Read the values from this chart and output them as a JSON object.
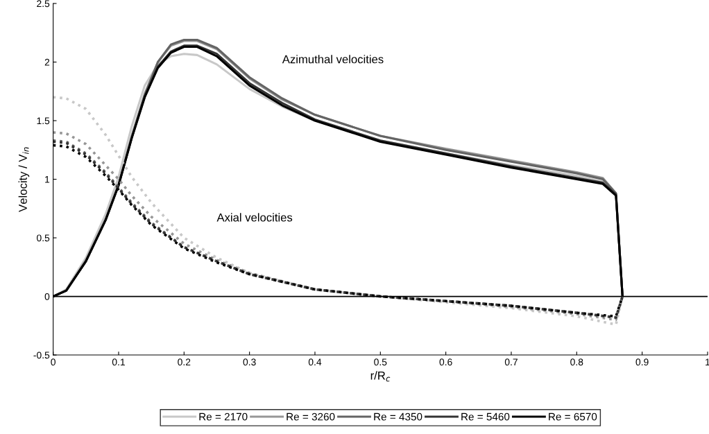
{
  "chart_data": {
    "type": "line",
    "xlabel": "r/R$_{c}$",
    "ylabel": "Velocity / V$_{in}$",
    "xlim": [
      0,
      1
    ],
    "xticks": [
      0,
      0.1,
      0.2,
      0.3,
      0.4,
      0.5,
      0.6,
      0.7,
      0.8,
      0.9,
      1
    ],
    "ylim": [
      -0.5,
      2.5
    ],
    "yticks": [
      -0.5,
      0,
      0.5,
      1,
      1.5,
      2,
      2.5
    ],
    "grid": false,
    "legend": "bottom",
    "marker": "none",
    "ref_lines": [
      {
        "axis": "y",
        "value": 0,
        "color": "#000000",
        "line_style": "solid"
      }
    ],
    "annotations": [
      "Azimuthal velocities",
      "Axial velocities"
    ],
    "series": [
      {
        "name": "Re = 2170",
        "color": "#c8c8c8",
        "line_style": "solid",
        "x": [
          0,
          0.02,
          0.05,
          0.08,
          0.1,
          0.12,
          0.14,
          0.16,
          0.18,
          0.2,
          0.22,
          0.25,
          0.3,
          0.35,
          0.4,
          0.5,
          0.6,
          0.7,
          0.8,
          0.84,
          0.86,
          0.87
        ],
        "values": [
          0,
          0.06,
          0.33,
          0.7,
          1.02,
          1.45,
          1.8,
          1.98,
          2.05,
          2.07,
          2.06,
          1.98,
          1.77,
          1.62,
          1.5,
          1.33,
          1.22,
          1.12,
          1.03,
          0.98,
          0.87,
          0
        ]
      },
      {
        "name": "Re = 3260",
        "color": "#969696",
        "line_style": "solid",
        "x": [
          0,
          0.02,
          0.05,
          0.08,
          0.1,
          0.12,
          0.14,
          0.16,
          0.18,
          0.2,
          0.22,
          0.25,
          0.3,
          0.35,
          0.4,
          0.5,
          0.6,
          0.7,
          0.8,
          0.84,
          0.86,
          0.87
        ],
        "values": [
          0,
          0.05,
          0.31,
          0.66,
          0.96,
          1.37,
          1.73,
          2.0,
          2.14,
          2.18,
          2.18,
          2.11,
          1.86,
          1.68,
          1.55,
          1.37,
          1.26,
          1.16,
          1.06,
          1.01,
          0.88,
          0
        ]
      },
      {
        "name": "Re = 4350",
        "color": "#646464",
        "line_style": "solid",
        "x": [
          0,
          0.02,
          0.05,
          0.08,
          0.1,
          0.12,
          0.14,
          0.16,
          0.18,
          0.2,
          0.22,
          0.25,
          0.3,
          0.35,
          0.4,
          0.5,
          0.6,
          0.7,
          0.8,
          0.84,
          0.86,
          0.87
        ],
        "values": [
          0,
          0.05,
          0.3,
          0.65,
          0.95,
          1.36,
          1.72,
          2.0,
          2.15,
          2.19,
          2.19,
          2.12,
          1.87,
          1.69,
          1.55,
          1.37,
          1.25,
          1.15,
          1.05,
          1.0,
          0.88,
          0
        ]
      },
      {
        "name": "Re = 5460",
        "color": "#323232",
        "line_style": "solid",
        "x": [
          0,
          0.02,
          0.05,
          0.08,
          0.1,
          0.12,
          0.14,
          0.16,
          0.18,
          0.2,
          0.22,
          0.25,
          0.3,
          0.35,
          0.4,
          0.5,
          0.6,
          0.7,
          0.8,
          0.84,
          0.86,
          0.87
        ],
        "values": [
          0,
          0.05,
          0.3,
          0.65,
          0.95,
          1.35,
          1.71,
          1.96,
          2.09,
          2.14,
          2.14,
          2.07,
          1.82,
          1.65,
          1.51,
          1.33,
          1.22,
          1.11,
          1.01,
          0.97,
          0.87,
          0
        ]
      },
      {
        "name": "Re = 6570",
        "color": "#000000",
        "line_style": "solid",
        "x": [
          0,
          0.02,
          0.05,
          0.08,
          0.1,
          0.12,
          0.14,
          0.16,
          0.18,
          0.2,
          0.22,
          0.25,
          0.3,
          0.35,
          0.4,
          0.5,
          0.6,
          0.7,
          0.8,
          0.84,
          0.86,
          0.87
        ],
        "values": [
          0,
          0.05,
          0.3,
          0.65,
          0.95,
          1.35,
          1.7,
          1.95,
          2.08,
          2.13,
          2.13,
          2.05,
          1.8,
          1.63,
          1.5,
          1.32,
          1.21,
          1.1,
          1.0,
          0.96,
          0.86,
          0
        ]
      },
      {
        "color": "#c8c8c8",
        "line_style": "dotted",
        "x": [
          0,
          0.02,
          0.05,
          0.08,
          0.1,
          0.12,
          0.15,
          0.2,
          0.25,
          0.3,
          0.4,
          0.5,
          0.6,
          0.7,
          0.8,
          0.86,
          0.87
        ],
        "values": [
          1.7,
          1.69,
          1.6,
          1.38,
          1.2,
          1.02,
          0.8,
          0.5,
          0.33,
          0.2,
          0.06,
          0.0,
          -0.05,
          -0.1,
          -0.17,
          -0.24,
          0
        ]
      },
      {
        "color": "#969696",
        "line_style": "dotted",
        "x": [
          0,
          0.02,
          0.05,
          0.08,
          0.1,
          0.12,
          0.15,
          0.2,
          0.25,
          0.3,
          0.4,
          0.5,
          0.6,
          0.7,
          0.8,
          0.86,
          0.87
        ],
        "values": [
          1.4,
          1.39,
          1.3,
          1.12,
          1.0,
          0.86,
          0.68,
          0.45,
          0.31,
          0.2,
          0.06,
          0.0,
          -0.04,
          -0.09,
          -0.15,
          -0.2,
          0
        ]
      },
      {
        "color": "#646464",
        "line_style": "dotted",
        "x": [
          0,
          0.02,
          0.05,
          0.08,
          0.1,
          0.12,
          0.15,
          0.2,
          0.25,
          0.3,
          0.4,
          0.5,
          0.6,
          0.7,
          0.8,
          0.86,
          0.87
        ],
        "values": [
          1.33,
          1.32,
          1.22,
          1.06,
          0.93,
          0.8,
          0.63,
          0.42,
          0.3,
          0.19,
          0.06,
          0.0,
          -0.04,
          -0.08,
          -0.14,
          -0.18,
          0
        ]
      },
      {
        "color": "#323232",
        "line_style": "dotted",
        "x": [
          0,
          0.02,
          0.05,
          0.08,
          0.1,
          0.12,
          0.15,
          0.2,
          0.25,
          0.3,
          0.4,
          0.5,
          0.6,
          0.7,
          0.8,
          0.86,
          0.87
        ],
        "values": [
          1.32,
          1.31,
          1.21,
          1.05,
          0.92,
          0.79,
          0.62,
          0.42,
          0.3,
          0.19,
          0.06,
          0.0,
          -0.04,
          -0.08,
          -0.14,
          -0.18,
          0
        ]
      },
      {
        "color": "#000000",
        "line_style": "dotted",
        "x": [
          0,
          0.02,
          0.05,
          0.08,
          0.1,
          0.12,
          0.15,
          0.2,
          0.25,
          0.3,
          0.4,
          0.5,
          0.6,
          0.7,
          0.8,
          0.86,
          0.87
        ],
        "values": [
          1.29,
          1.28,
          1.19,
          1.03,
          0.91,
          0.78,
          0.61,
          0.41,
          0.29,
          0.19,
          0.06,
          0.0,
          -0.04,
          -0.08,
          -0.14,
          -0.17,
          0
        ]
      }
    ]
  }
}
